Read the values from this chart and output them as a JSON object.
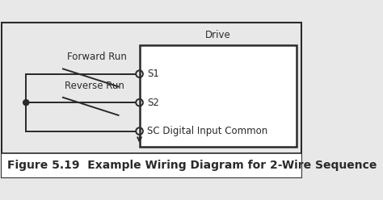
{
  "title": "Figure 5.19  Example Wiring Diagram for 2-Wire Sequence",
  "drive_label": "Drive",
  "forward_run_label": "Forward Run",
  "reverse_run_label": "Reverse Run",
  "s1_label": "S1",
  "s2_label": "S2",
  "sc_label": "SC Digital Input Common",
  "bg_color": "#e8e8e8",
  "box_color": "#ffffff",
  "line_color": "#2a2a2a",
  "title_fontsize": 10,
  "label_fontsize": 8.5
}
